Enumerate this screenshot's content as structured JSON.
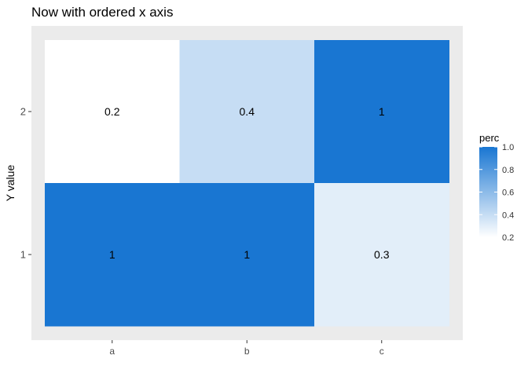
{
  "chart_data": {
    "type": "heatmap",
    "title": "Now with ordered x axis",
    "xlabel": "",
    "ylabel": "Y value",
    "x_categories": [
      "a",
      "b",
      "c"
    ],
    "y_categories": [
      "1",
      "2"
    ],
    "cells": [
      {
        "x": "a",
        "y": "2",
        "value": 0.2,
        "label": "0.2"
      },
      {
        "x": "b",
        "y": "2",
        "value": 0.4,
        "label": "0.4"
      },
      {
        "x": "c",
        "y": "2",
        "value": 1.0,
        "label": "1"
      },
      {
        "x": "a",
        "y": "1",
        "value": 1.0,
        "label": "1"
      },
      {
        "x": "b",
        "y": "1",
        "value": 1.0,
        "label": "1"
      },
      {
        "x": "c",
        "y": "1",
        "value": 0.3,
        "label": "0.3"
      }
    ],
    "legend": {
      "title": "perc",
      "placement": "right",
      "ticks": [
        "1.0",
        "0.8",
        "0.6",
        "0.4",
        "0.2"
      ],
      "range": [
        0.2,
        1.0
      ],
      "low_color": "#ffffff",
      "high_color": "#1976d2"
    },
    "panel_background": "#ebebeb",
    "grid": false
  }
}
